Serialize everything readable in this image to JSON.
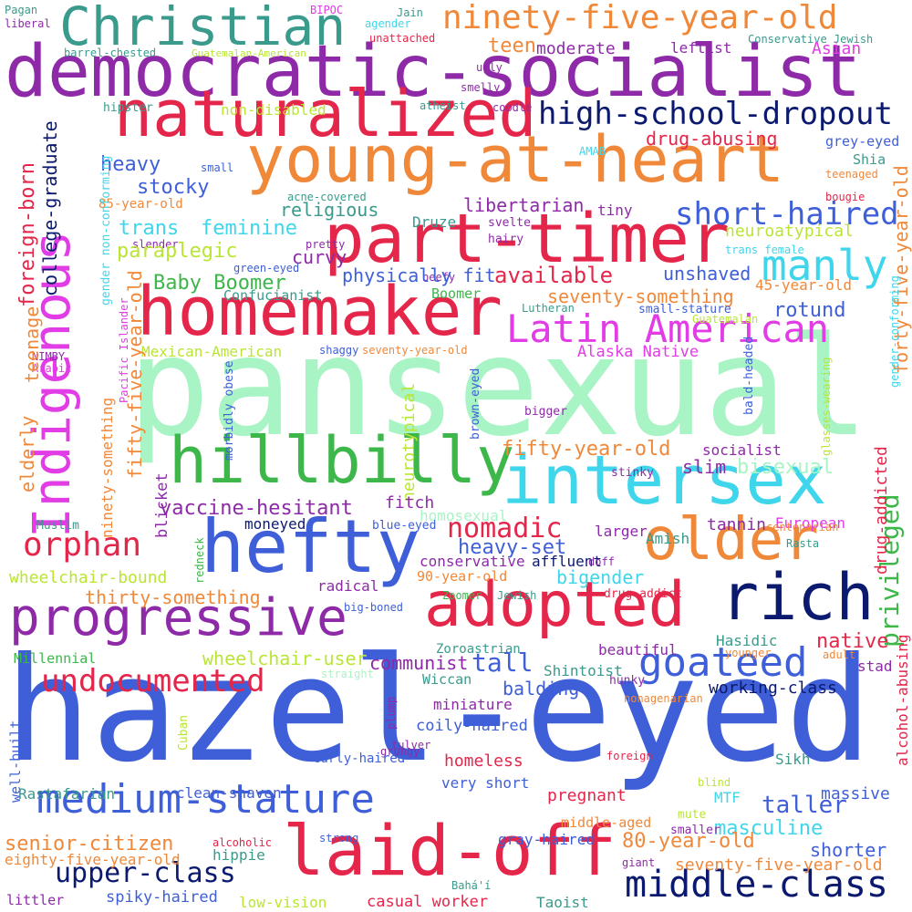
{
  "palette": {
    "royal_blue": "#3E5FD8",
    "crimson": "#E5264B",
    "orange": "#F0883A",
    "purple": "#8E2AA8",
    "teal": "#3A9A8C",
    "mint": "#A9F4C4",
    "green": "#3DB64A",
    "cyan": "#3FD6EC",
    "magenta": "#E23CE6",
    "navy": "#0B1A6E",
    "lime": "#B9E534",
    "background": "#FFFFFF"
  },
  "words": [
    {
      "text": "hazel-eyed",
      "color": "royal_blue"
    },
    {
      "text": "pansexual",
      "color": "mint"
    },
    {
      "text": "democratic-socialist",
      "color": "purple"
    },
    {
      "text": "young-at-heart",
      "color": "orange"
    },
    {
      "text": "homemaker",
      "color": "crimson"
    },
    {
      "text": "part-timer",
      "color": "crimson"
    },
    {
      "text": "naturalized",
      "color": "crimson"
    },
    {
      "text": "Christian",
      "color": "teal"
    },
    {
      "text": "ninety-five-year-old",
      "color": "orange"
    },
    {
      "text": "Indigenous",
      "color": "magenta"
    },
    {
      "text": "hillbilly",
      "color": "green"
    },
    {
      "text": "intersex",
      "color": "cyan"
    },
    {
      "text": "hefty",
      "color": "royal_blue"
    },
    {
      "text": "older",
      "color": "orange"
    },
    {
      "text": "progressive",
      "color": "purple"
    },
    {
      "text": "adopted",
      "color": "crimson"
    },
    {
      "text": "rich",
      "color": "navy"
    },
    {
      "text": "medium-stature",
      "color": "royal_blue"
    },
    {
      "text": "laid-off",
      "color": "crimson"
    },
    {
      "text": "middle-class",
      "color": "navy"
    },
    {
      "text": "Latin American",
      "color": "magenta"
    },
    {
      "text": "high-school-dropout",
      "color": "navy"
    },
    {
      "text": "manly",
      "color": "cyan"
    },
    {
      "text": "short-haired",
      "color": "royal_blue"
    },
    {
      "text": "undocumented",
      "color": "crimson"
    },
    {
      "text": "goateed",
      "color": "royal_blue"
    },
    {
      "text": "upper-class",
      "color": "navy"
    },
    {
      "text": "orphan",
      "color": "crimson"
    },
    {
      "text": "privileged",
      "color": "green"
    },
    {
      "text": "nomadic",
      "color": "crimson"
    },
    {
      "text": "Pagan",
      "color": "teal"
    },
    {
      "text": "BIPOC",
      "color": "magenta"
    },
    {
      "text": "Jain",
      "color": "teal"
    },
    {
      "text": "liberal",
      "color": "purple"
    },
    {
      "text": "agender",
      "color": "cyan"
    },
    {
      "text": "unattached",
      "color": "crimson"
    },
    {
      "text": "barrel-chested",
      "color": "teal"
    },
    {
      "text": "Guatemalan-American",
      "color": "lime"
    },
    {
      "text": "teen",
      "color": "orange"
    },
    {
      "text": "moderate",
      "color": "purple"
    },
    {
      "text": "leftist",
      "color": "purple"
    },
    {
      "text": "Conservative Jewish",
      "color": "teal"
    },
    {
      "text": "Asian",
      "color": "magenta"
    },
    {
      "text": "ugly",
      "color": "purple"
    },
    {
      "text": "smelly",
      "color": "purple"
    },
    {
      "text": "hipster",
      "color": "teal"
    },
    {
      "text": "atheist",
      "color": "teal"
    },
    {
      "text": "coodle",
      "color": "purple"
    },
    {
      "text": "non-disabled",
      "color": "lime"
    },
    {
      "text": "drug-abusing",
      "color": "crimson"
    },
    {
      "text": "grey-eyed",
      "color": "royal_blue"
    },
    {
      "text": "heavy",
      "color": "royal_blue"
    },
    {
      "text": "small",
      "color": "royal_blue"
    },
    {
      "text": "AMAB",
      "color": "cyan"
    },
    {
      "text": "Shia",
      "color": "teal"
    },
    {
      "text": "teenaged",
      "color": "orange"
    },
    {
      "text": "stocky",
      "color": "royal_blue"
    },
    {
      "text": "acne-covered",
      "color": "teal"
    },
    {
      "text": "bougie",
      "color": "crimson"
    },
    {
      "text": "85-year-old",
      "color": "orange"
    },
    {
      "text": "religious",
      "color": "teal"
    },
    {
      "text": "libertarian",
      "color": "purple"
    },
    {
      "text": "tiny",
      "color": "purple"
    },
    {
      "text": "trans",
      "color": "cyan"
    },
    {
      "text": "feminine",
      "color": "cyan"
    },
    {
      "text": "Druze",
      "color": "teal"
    },
    {
      "text": "svelte",
      "color": "purple"
    },
    {
      "text": "slender",
      "color": "purple"
    },
    {
      "text": "pretty",
      "color": "purple"
    },
    {
      "text": "hairy",
      "color": "purple"
    },
    {
      "text": "neuroatypical",
      "color": "lime"
    },
    {
      "text": "paraplegic",
      "color": "lime"
    },
    {
      "text": "curvy",
      "color": "purple"
    },
    {
      "text": "trans female",
      "color": "cyan"
    },
    {
      "text": "green-eyed",
      "color": "royal_blue"
    },
    {
      "text": "beefy",
      "color": "purple"
    },
    {
      "text": "physically fit",
      "color": "royal_blue"
    },
    {
      "text": "available",
      "color": "crimson"
    },
    {
      "text": "unshaved",
      "color": "royal_blue"
    },
    {
      "text": "Baby Boomer",
      "color": "green"
    },
    {
      "text": "seventy-something",
      "color": "orange"
    },
    {
      "text": "45-year-old",
      "color": "orange"
    },
    {
      "text": "Confucianist",
      "color": "teal"
    },
    {
      "text": "Boomer",
      "color": "green"
    },
    {
      "text": "Lutheran",
      "color": "teal"
    },
    {
      "text": "small-stature",
      "color": "royal_blue"
    },
    {
      "text": "rotund",
      "color": "royal_blue"
    },
    {
      "text": "Guatemalan",
      "color": "lime"
    },
    {
      "text": "Mexican-American",
      "color": "lime"
    },
    {
      "text": "shaggy",
      "color": "royal_blue"
    },
    {
      "text": "seventy-year-old",
      "color": "orange"
    },
    {
      "text": "Alaska Native",
      "color": "magenta"
    },
    {
      "text": "NIMBY",
      "color": "purple"
    },
    {
      "text": "Arabic",
      "color": "magenta"
    },
    {
      "text": "Pacific Islander",
      "color": "magenta"
    },
    {
      "text": "foreign-born",
      "color": "crimson"
    },
    {
      "text": "college-graduate",
      "color": "navy"
    },
    {
      "text": "teenage",
      "color": "orange"
    },
    {
      "text": "gender non-conforming",
      "color": "cyan"
    },
    {
      "text": "fifty-five-year-old",
      "color": "orange"
    },
    {
      "text": "forty-five-year-old",
      "color": "orange"
    },
    {
      "text": "gender-conforming",
      "color": "cyan"
    },
    {
      "text": "glasses-wearing",
      "color": "lime"
    },
    {
      "text": "bald-headed",
      "color": "royal_blue"
    },
    {
      "text": "bigger",
      "color": "purple"
    },
    {
      "text": "brown-eyed",
      "color": "royal_blue"
    },
    {
      "text": "morbidly obese",
      "color": "royal_blue"
    },
    {
      "text": "neurotypical",
      "color": "lime"
    },
    {
      "text": "fifty-year-old",
      "color": "orange"
    },
    {
      "text": "socialist",
      "color": "purple"
    },
    {
      "text": "bisexual",
      "color": "mint"
    },
    {
      "text": "slim",
      "color": "purple"
    },
    {
      "text": "stinky",
      "color": "purple"
    },
    {
      "text": "elderly",
      "color": "orange"
    },
    {
      "text": "vaccine-hesitant",
      "color": "purple"
    },
    {
      "text": "fitch",
      "color": "purple"
    },
    {
      "text": "homosexual",
      "color": "mint"
    },
    {
      "text": "blicket",
      "color": "purple"
    },
    {
      "text": "ninety-something",
      "color": "orange"
    },
    {
      "text": "Muslim",
      "color": "teal"
    },
    {
      "text": "moneyed",
      "color": "navy"
    },
    {
      "text": "drug-addicted",
      "color": "crimson"
    },
    {
      "text": "tannin",
      "color": "purple"
    },
    {
      "text": "European",
      "color": "magenta"
    },
    {
      "text": "centenarian",
      "color": "orange"
    },
    {
      "text": "larger",
      "color": "purple"
    },
    {
      "text": "Amish",
      "color": "teal"
    },
    {
      "text": "Rasta",
      "color": "teal"
    },
    {
      "text": "heavy-set",
      "color": "royal_blue"
    },
    {
      "text": "redneck",
      "color": "green"
    },
    {
      "text": "wheelchair-bound",
      "color": "lime"
    },
    {
      "text": "blue-eyed",
      "color": "royal_blue"
    },
    {
      "text": "conservative",
      "color": "purple"
    },
    {
      "text": "affluent",
      "color": "navy"
    },
    {
      "text": "doff",
      "color": "purple"
    },
    {
      "text": "radical",
      "color": "purple"
    },
    {
      "text": "bigender",
      "color": "cyan"
    },
    {
      "text": "90-year-old",
      "color": "orange"
    },
    {
      "text": "thirty-something",
      "color": "orange"
    },
    {
      "text": "Zoomer",
      "color": "green"
    },
    {
      "text": "Jewish",
      "color": "teal"
    },
    {
      "text": "drug-addict",
      "color": "crimson"
    },
    {
      "text": "big-boned",
      "color": "royal_blue"
    },
    {
      "text": "Hasidic",
      "color": "teal"
    },
    {
      "text": "native",
      "color": "crimson"
    },
    {
      "text": "Millennial",
      "color": "green"
    },
    {
      "text": "wheelchair-user",
      "color": "lime"
    },
    {
      "text": "communist",
      "color": "purple"
    },
    {
      "text": "Zoroastrian",
      "color": "teal"
    },
    {
      "text": "beautiful",
      "color": "purple"
    },
    {
      "text": "younger",
      "color": "orange"
    },
    {
      "text": "adult",
      "color": "orange"
    },
    {
      "text": "straight",
      "color": "mint"
    },
    {
      "text": "Wiccan",
      "color": "teal"
    },
    {
      "text": "stad",
      "color": "purple"
    },
    {
      "text": "tall",
      "color": "royal_blue"
    },
    {
      "text": "Shintoist",
      "color": "teal"
    },
    {
      "text": "balding",
      "color": "royal_blue"
    },
    {
      "text": "hunky",
      "color": "purple"
    },
    {
      "text": "working-class",
      "color": "navy"
    },
    {
      "text": "miniature",
      "color": "purple"
    },
    {
      "text": "nonagenarian",
      "color": "orange"
    },
    {
      "text": "alcohol-abusing",
      "color": "crimson"
    },
    {
      "text": "coily-haired",
      "color": "royal_blue"
    },
    {
      "text": "plump",
      "color": "purple"
    },
    {
      "text": "grungy",
      "color": "purple"
    },
    {
      "text": "Cuban",
      "color": "lime"
    },
    {
      "text": "tulver",
      "color": "purple"
    },
    {
      "text": "homeless",
      "color": "crimson"
    },
    {
      "text": "foreign",
      "color": "crimson"
    },
    {
      "text": "curly-haired",
      "color": "royal_blue"
    },
    {
      "text": "Sikh",
      "color": "teal"
    },
    {
      "text": "well-built",
      "color": "royal_blue"
    },
    {
      "text": "very short",
      "color": "royal_blue"
    },
    {
      "text": "blind",
      "color": "lime"
    },
    {
      "text": "Rastafarian",
      "color": "teal"
    },
    {
      "text": "clean-shaven",
      "color": "royal_blue"
    },
    {
      "text": "MTF",
      "color": "cyan"
    },
    {
      "text": "massive",
      "color": "royal_blue"
    },
    {
      "text": "pregnant",
      "color": "crimson"
    },
    {
      "text": "taller",
      "color": "royal_blue"
    },
    {
      "text": "mute",
      "color": "lime"
    },
    {
      "text": "senior-citizen",
      "color": "orange"
    },
    {
      "text": "middle-aged",
      "color": "orange"
    },
    {
      "text": "masculine",
      "color": "cyan"
    },
    {
      "text": "smaller",
      "color": "purple"
    },
    {
      "text": "strong",
      "color": "royal_blue"
    },
    {
      "text": "alcoholic",
      "color": "crimson"
    },
    {
      "text": "80-year-old",
      "color": "orange"
    },
    {
      "text": "shorter",
      "color": "royal_blue"
    },
    {
      "text": "eighty-five-year-old",
      "color": "orange"
    },
    {
      "text": "hippie",
      "color": "teal"
    },
    {
      "text": "gray-haired",
      "color": "royal_blue"
    },
    {
      "text": "giant",
      "color": "purple"
    },
    {
      "text": "seventy-five-year-old",
      "color": "orange"
    },
    {
      "text": "Bahá'í",
      "color": "teal"
    },
    {
      "text": "low-vision",
      "color": "lime"
    },
    {
      "text": "casual worker",
      "color": "crimson"
    },
    {
      "text": "Taoist",
      "color": "teal"
    },
    {
      "text": "spiky-haired",
      "color": "royal_blue"
    },
    {
      "text": "littler",
      "color": "purple"
    }
  ]
}
